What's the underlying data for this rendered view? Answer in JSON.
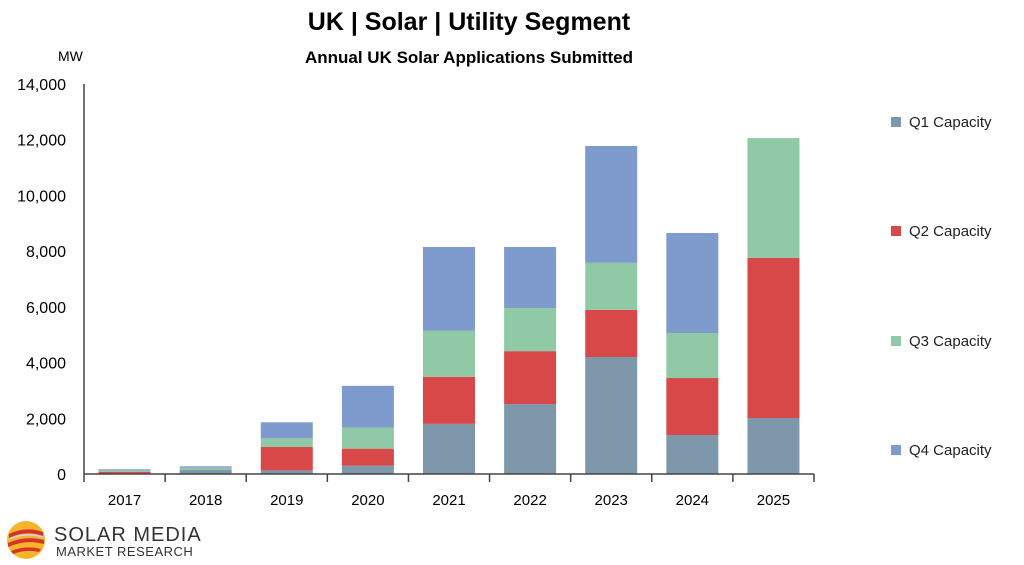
{
  "chart_data": {
    "type": "bar",
    "stacked": true,
    "title": "UK | Solar | Utility Segment",
    "subtitle": "Annual UK Solar Applications Submitted",
    "ylabel": "MW",
    "xlabel": "",
    "ylim": [
      0,
      14000
    ],
    "yticks": [
      0,
      2000,
      4000,
      6000,
      8000,
      10000,
      12000,
      14000
    ],
    "ytick_labels": [
      "0",
      "2,000",
      "4,000",
      "6,000",
      "8,000",
      "10,000",
      "12,000",
      "14,000"
    ],
    "grid": false,
    "legend_position": "right",
    "categories": [
      "2017",
      "2018",
      "2019",
      "2020",
      "2021",
      "2022",
      "2023",
      "2024",
      "2025"
    ],
    "series": [
      {
        "name": "Q1 Capacity",
        "color": "#7f97ab",
        "values": [
          20,
          155,
          130,
          300,
          1800,
          2510,
          4200,
          1400,
          2010
        ]
      },
      {
        "name": "Q2 Capacity",
        "color": "#d94848",
        "values": [
          60,
          0,
          840,
          610,
          1690,
          1900,
          1690,
          2045,
          5745
        ]
      },
      {
        "name": "Q3 Capacity",
        "color": "#8fc9a5",
        "values": [
          50,
          70,
          310,
          755,
          1650,
          1545,
          1690,
          1615,
          4305
        ]
      },
      {
        "name": "Q4 Capacity",
        "color": "#7f9acc",
        "values": [
          40,
          50,
          575,
          1500,
          3010,
          2195,
          4195,
          3590,
          0
        ]
      }
    ]
  },
  "logo": {
    "line1": "SOLAR MEDIA",
    "line2": "MARKET RESEARCH"
  }
}
